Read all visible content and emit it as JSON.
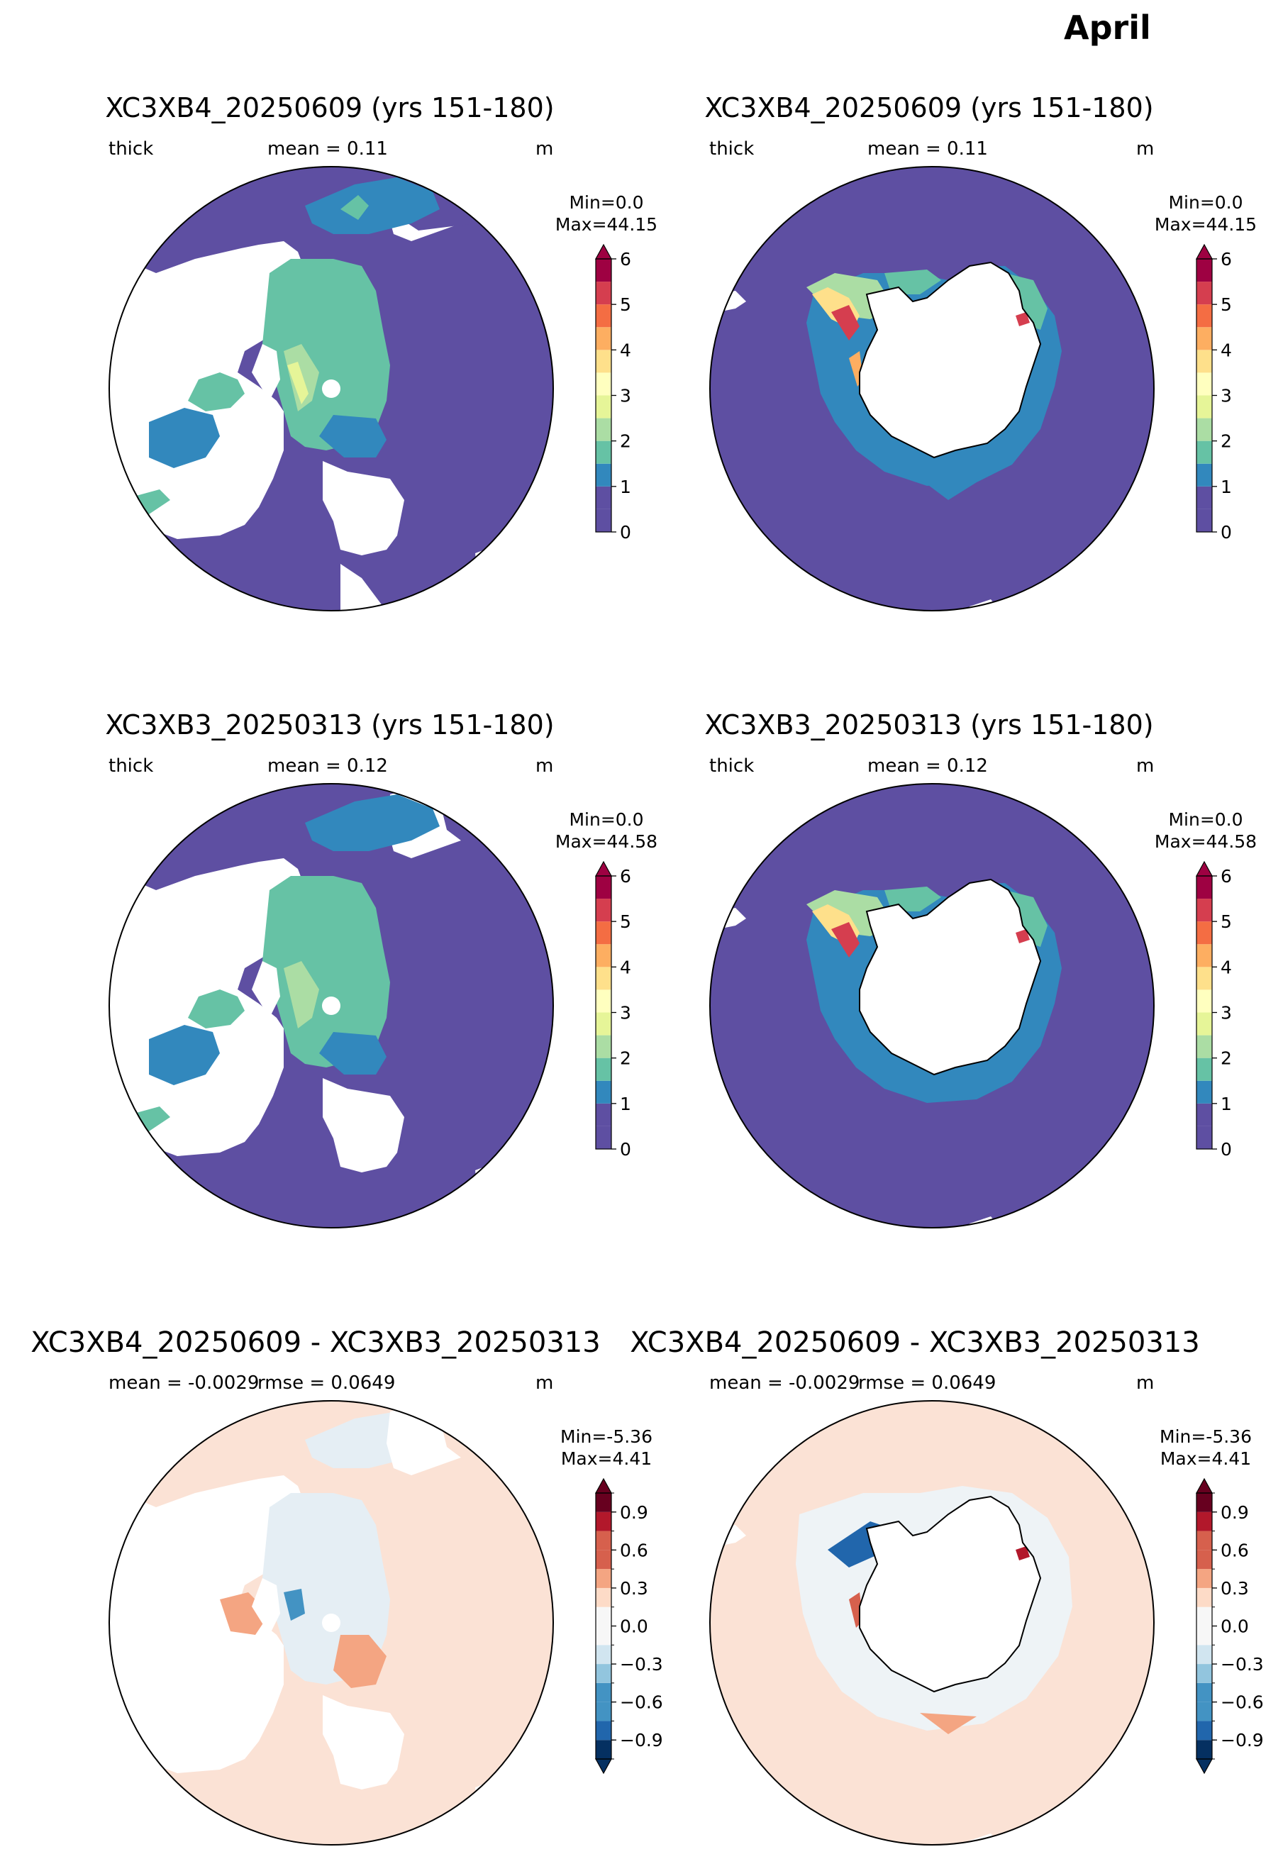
{
  "figure": {
    "title": "April"
  },
  "colors": {
    "thick": [
      "#5e4fa2",
      "#3288bd",
      "#66c2a5",
      "#abdda4",
      "#e6f598",
      "#ffffbf",
      "#fee08b",
      "#fdae61",
      "#f46d43",
      "#d53e4f",
      "#9e0142"
    ],
    "diff_levels": [
      "#053061",
      "#2166ac",
      "#4393c3",
      "#92c5de",
      "#d1e5f0",
      "#f7f7f7",
      "#fddbc7",
      "#f4a582",
      "#d6604d",
      "#b2182b",
      "#67001f"
    ],
    "ocean_fill_thick": "#5e4fa2",
    "ocean_fill_diff": "#fbe2d5",
    "land": "#ffffff"
  },
  "panels": [
    {
      "title": "XC3XB4_20250609 (yrs 151-180)",
      "var_label": "thick",
      "stat": "mean = 0.11",
      "stat2": "",
      "units": "m",
      "min_label": "Min=0.0",
      "max_label": "Max=44.15",
      "hemisphere": "north",
      "kind": "thick"
    },
    {
      "title": "XC3XB4_20250609 (yrs 151-180)",
      "var_label": "thick",
      "stat": "mean = 0.11",
      "stat2": "",
      "units": "m",
      "min_label": "Min=0.0",
      "max_label": "Max=44.15",
      "hemisphere": "south",
      "kind": "thick"
    },
    {
      "title": "XC3XB3_20250313 (yrs 151-180)",
      "var_label": "thick",
      "stat": "mean = 0.12",
      "stat2": "",
      "units": "m",
      "min_label": "Min=0.0",
      "max_label": "Max=44.58",
      "hemisphere": "north",
      "kind": "thick"
    },
    {
      "title": "XC3XB3_20250313 (yrs 151-180)",
      "var_label": "thick",
      "stat": "mean = 0.12",
      "stat2": "",
      "units": "m",
      "min_label": "Min=0.0",
      "max_label": "Max=44.58",
      "hemisphere": "south",
      "kind": "thick"
    },
    {
      "title": "XC3XB4_20250609 - XC3XB3_20250313",
      "var_label": "",
      "stat": "mean = -0.0029",
      "stat2": "rmse = 0.0649",
      "units": "m",
      "min_label": "Min=-5.36",
      "max_label": "Max=4.41",
      "hemisphere": "north",
      "kind": "diff"
    },
    {
      "title": "XC3XB4_20250609 - XC3XB3_20250313",
      "var_label": "",
      "stat": "mean = -0.0029",
      "stat2": "rmse = 0.0649",
      "units": "m",
      "min_label": "Min=-5.36",
      "max_label": "Max=4.41",
      "hemisphere": "south",
      "kind": "diff"
    }
  ],
  "chart_data": [
    {
      "type": "heatmap",
      "title": "XC3XB4_20250609 (yrs 151-180)",
      "variable": "thick",
      "units": "m",
      "projection": "north polar stereographic",
      "mean": 0.11,
      "min": 0.0,
      "max": 44.15,
      "colorbar": {
        "levels": [
          0,
          0.5,
          1,
          1.5,
          2,
          2.5,
          3,
          3.5,
          4,
          4.5,
          5,
          5.5,
          6
        ],
        "ticks": [
          0,
          1,
          2,
          3,
          4,
          5,
          6
        ],
        "tick_labels": [
          "0",
          "1",
          "2",
          "3",
          "4",
          "5",
          "6"
        ],
        "extend": "max",
        "cmap": "Spectral_r"
      }
    },
    {
      "type": "heatmap",
      "title": "XC3XB4_20250609 (yrs 151-180)",
      "variable": "thick",
      "units": "m",
      "projection": "south polar stereographic",
      "mean": 0.11,
      "min": 0.0,
      "max": 44.15,
      "colorbar": {
        "levels": [
          0,
          0.5,
          1,
          1.5,
          2,
          2.5,
          3,
          3.5,
          4,
          4.5,
          5,
          5.5,
          6
        ],
        "ticks": [
          0,
          1,
          2,
          3,
          4,
          5,
          6
        ],
        "tick_labels": [
          "0",
          "1",
          "2",
          "3",
          "4",
          "5",
          "6"
        ],
        "extend": "max",
        "cmap": "Spectral_r"
      }
    },
    {
      "type": "heatmap",
      "title": "XC3XB3_20250313 (yrs 151-180)",
      "variable": "thick",
      "units": "m",
      "projection": "north polar stereographic",
      "mean": 0.12,
      "min": 0.0,
      "max": 44.58,
      "colorbar": {
        "levels": [
          0,
          0.5,
          1,
          1.5,
          2,
          2.5,
          3,
          3.5,
          4,
          4.5,
          5,
          5.5,
          6
        ],
        "ticks": [
          0,
          1,
          2,
          3,
          4,
          5,
          6
        ],
        "tick_labels": [
          "0",
          "1",
          "2",
          "3",
          "4",
          "5",
          "6"
        ],
        "extend": "max",
        "cmap": "Spectral_r"
      }
    },
    {
      "type": "heatmap",
      "title": "XC3XB3_20250313 (yrs 151-180)",
      "variable": "thick",
      "units": "m",
      "projection": "south polar stereographic",
      "mean": 0.12,
      "min": 0.0,
      "max": 44.58,
      "colorbar": {
        "levels": [
          0,
          0.5,
          1,
          1.5,
          2,
          2.5,
          3,
          3.5,
          4,
          4.5,
          5,
          5.5,
          6
        ],
        "ticks": [
          0,
          1,
          2,
          3,
          4,
          5,
          6
        ],
        "tick_labels": [
          "0",
          "1",
          "2",
          "3",
          "4",
          "5",
          "6"
        ],
        "extend": "max",
        "cmap": "Spectral_r"
      }
    },
    {
      "type": "heatmap",
      "title": "XC3XB4_20250609 - XC3XB3_20250313",
      "units": "m",
      "projection": "north polar stereographic",
      "mean": -0.0029,
      "rmse": 0.0649,
      "min": -5.36,
      "max": 4.41,
      "colorbar": {
        "levels": [
          -1.05,
          -0.9,
          -0.75,
          -0.6,
          -0.45,
          -0.3,
          -0.15,
          0,
          0.15,
          0.3,
          0.45,
          0.6,
          0.75,
          0.9,
          1.05
        ],
        "ticks": [
          -0.9,
          -0.6,
          -0.3,
          0.0,
          0.3,
          0.6,
          0.9
        ],
        "tick_labels": [
          "−0.9",
          "−0.6",
          "−0.3",
          "0.0",
          "0.3",
          "0.6",
          "0.9"
        ],
        "extend": "both",
        "cmap": "RdBu_r"
      }
    },
    {
      "type": "heatmap",
      "title": "XC3XB4_20250609 - XC3XB3_20250313",
      "units": "m",
      "projection": "south polar stereographic",
      "mean": -0.0029,
      "rmse": 0.0649,
      "min": -5.36,
      "max": 4.41,
      "colorbar": {
        "levels": [
          -1.05,
          -0.9,
          -0.75,
          -0.6,
          -0.45,
          -0.3,
          -0.15,
          0,
          0.15,
          0.3,
          0.45,
          0.6,
          0.75,
          0.9,
          1.05
        ],
        "ticks": [
          -0.9,
          -0.6,
          -0.3,
          0.0,
          0.3,
          0.6,
          0.9
        ],
        "tick_labels": [
          "−0.9",
          "−0.6",
          "−0.3",
          "0.0",
          "0.3",
          "0.6",
          "0.9"
        ],
        "extend": "both",
        "cmap": "RdBu_r"
      }
    }
  ]
}
